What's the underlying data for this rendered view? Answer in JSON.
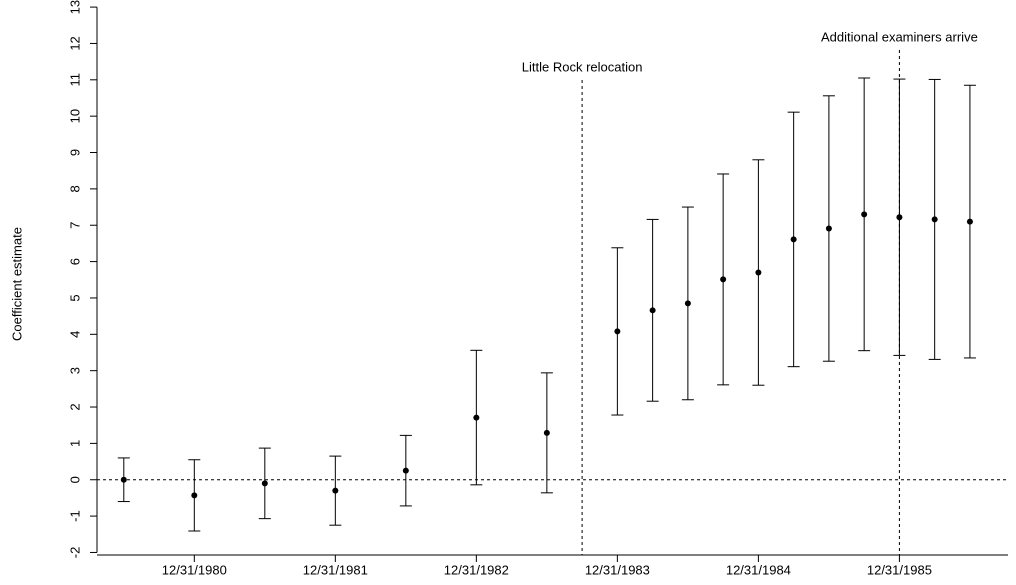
{
  "chart_data": {
    "type": "errorbar",
    "ylabel": "Coefficient estimate",
    "x": [
      1980.5,
      1981,
      1981.5,
      1982,
      1982.5,
      1983,
      1983.5,
      1984,
      1984.25,
      1984.5,
      1984.75,
      1985,
      1985.25,
      1985.5,
      1985.75,
      1986,
      1986.25,
      1986.5
    ],
    "values": [
      0,
      -0.43,
      -0.1,
      -0.3,
      0.25,
      1.71,
      1.29,
      4.08,
      4.66,
      4.85,
      5.51,
      5.7,
      6.61,
      6.91,
      7.3,
      7.22,
      7.16,
      7.1
    ],
    "errors": [
      0.6,
      0.98,
      0.97,
      0.95,
      0.97,
      1.85,
      1.65,
      2.3,
      2.5,
      2.65,
      2.9,
      3.1,
      3.5,
      3.65,
      3.75,
      3.8,
      3.85,
      3.75
    ],
    "color": "#000000",
    "xlim": [
      1980.31,
      1986.77
    ],
    "xticks": [
      {
        "value": 1981,
        "label": "12/31/1980"
      },
      {
        "value": 1982,
        "label": "12/31/1981"
      },
      {
        "value": 1983,
        "label": "12/31/1982"
      },
      {
        "value": 1984,
        "label": "12/31/1983"
      },
      {
        "value": 1985,
        "label": "12/31/1984"
      },
      {
        "value": 1986,
        "label": "12/31/1985"
      }
    ],
    "ylim": [
      -2.07,
      12.92
    ],
    "yticks": [
      -2,
      -1,
      0,
      1,
      2,
      3,
      4,
      5,
      6,
      7,
      8,
      9,
      10,
      11,
      12,
      13
    ],
    "hline": 0,
    "annotations": [
      {
        "text": "Little Rock relocation",
        "x": 1983.75
      },
      {
        "text": "Additional examiners arrive",
        "x": 1986
      }
    ]
  }
}
